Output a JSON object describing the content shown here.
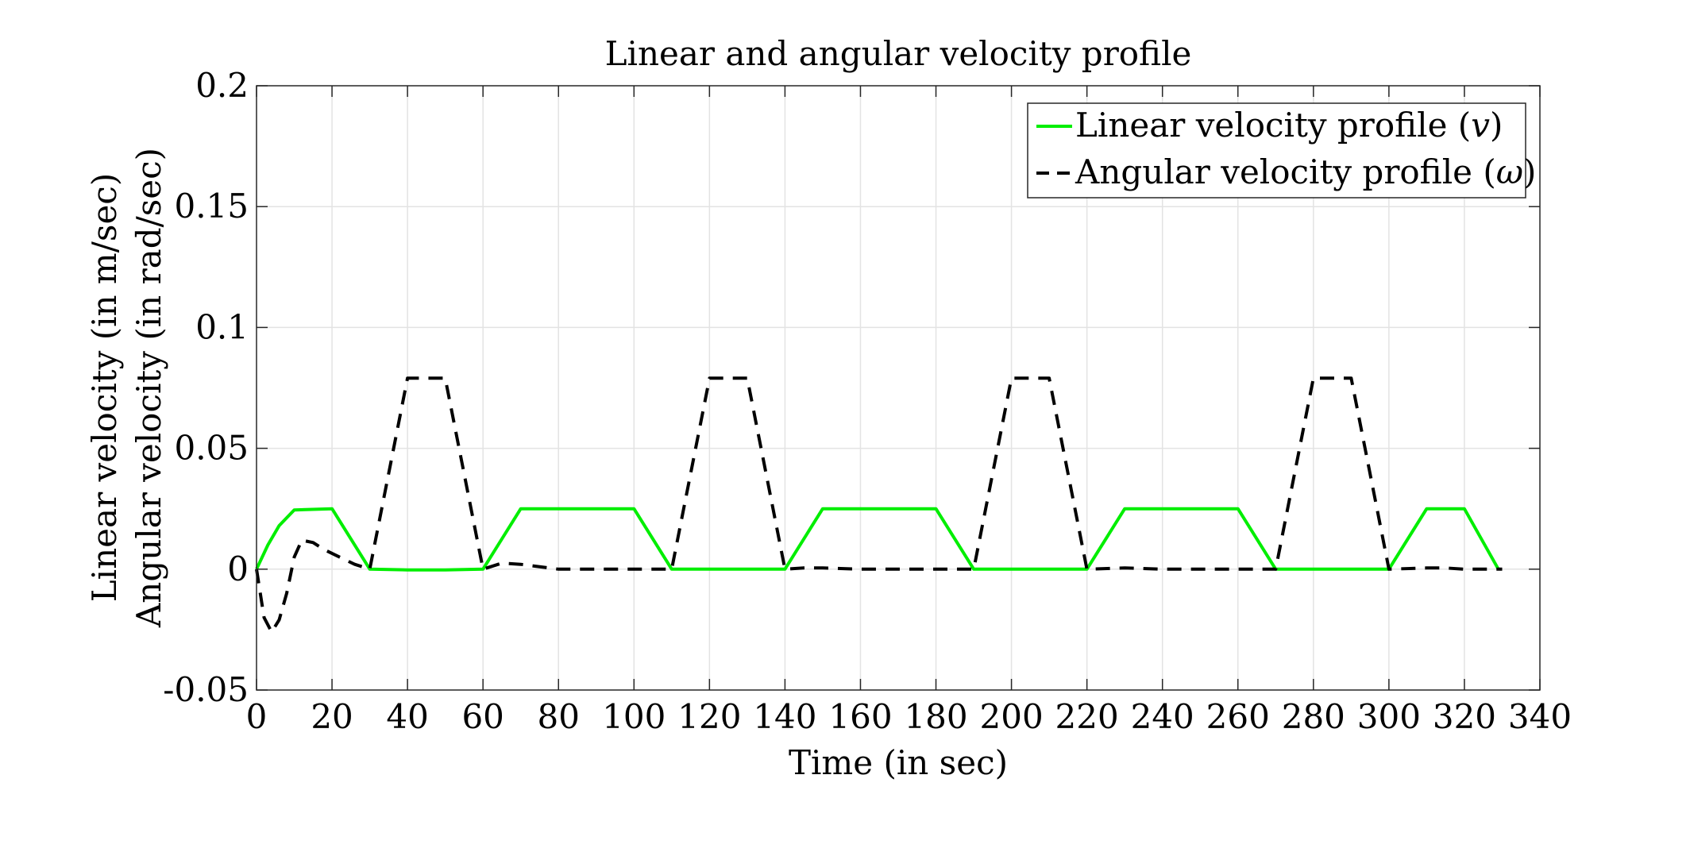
{
  "chart_data": {
    "type": "line",
    "title": "Linear and angular velocity profile",
    "xlabel": "Time (in sec)",
    "ylabel_lines": [
      "Linear velocity (in m/sec)",
      "Angular velocity (in rad/sec)"
    ],
    "xlim": [
      0,
      340
    ],
    "ylim": [
      -0.05,
      0.2
    ],
    "xticks": [
      0,
      20,
      40,
      60,
      80,
      100,
      120,
      140,
      160,
      180,
      200,
      220,
      240,
      260,
      280,
      300,
      320,
      340
    ],
    "yticks": [
      -0.05,
      0,
      0.05,
      0.1,
      0.15,
      0.2
    ],
    "ytick_labels": [
      "-0.05",
      "0",
      "0.05",
      "0.1",
      "0.15",
      "0.2"
    ],
    "grid": true,
    "legend_position": "top-right",
    "series": [
      {
        "name": "Linear velocity profile (v)",
        "label_main": "Linear velocity profile (",
        "label_symbol": "v",
        "label_close": ")",
        "color": "#00ee00",
        "dash": "solid",
        "x": [
          0,
          3,
          6,
          10,
          20,
          30,
          40,
          50,
          60,
          70,
          100,
          110,
          140,
          150,
          180,
          190,
          220,
          230,
          260,
          270,
          300,
          310,
          320,
          329
        ],
        "y": [
          0,
          0.01,
          0.018,
          0.0245,
          0.025,
          0,
          -0.0003,
          -0.0003,
          0,
          0.025,
          0.025,
          0,
          0,
          0.025,
          0.025,
          0,
          0,
          0.025,
          0.025,
          0,
          0,
          0.025,
          0.025,
          0
        ]
      },
      {
        "name": "Angular velocity profile (ω)",
        "label_main": "Angular velocity profile (",
        "label_symbol": "ω",
        "label_close": ")",
        "color": "#000000",
        "dash": "dashed",
        "x": [
          0,
          2,
          4,
          6,
          8,
          10,
          12,
          15,
          18,
          22,
          26,
          30,
          40,
          50,
          60,
          65,
          70,
          80,
          100,
          110,
          120,
          130,
          140,
          145,
          150,
          160,
          190,
          200,
          210,
          220,
          230,
          240,
          270,
          280,
          290,
          300,
          310,
          315,
          320,
          330
        ],
        "y": [
          0,
          -0.02,
          -0.026,
          -0.021,
          -0.01,
          0.005,
          0.012,
          0.011,
          0.008,
          0.005,
          0.002,
          0,
          0.079,
          0.079,
          0,
          0.0025,
          0.002,
          0,
          0,
          0,
          0.079,
          0.079,
          0,
          0.0005,
          0.0005,
          0,
          0,
          0.079,
          0.079,
          0,
          0.0005,
          0,
          0,
          0.079,
          0.079,
          0,
          0.0005,
          0.0005,
          0,
          0
        ]
      }
    ]
  }
}
